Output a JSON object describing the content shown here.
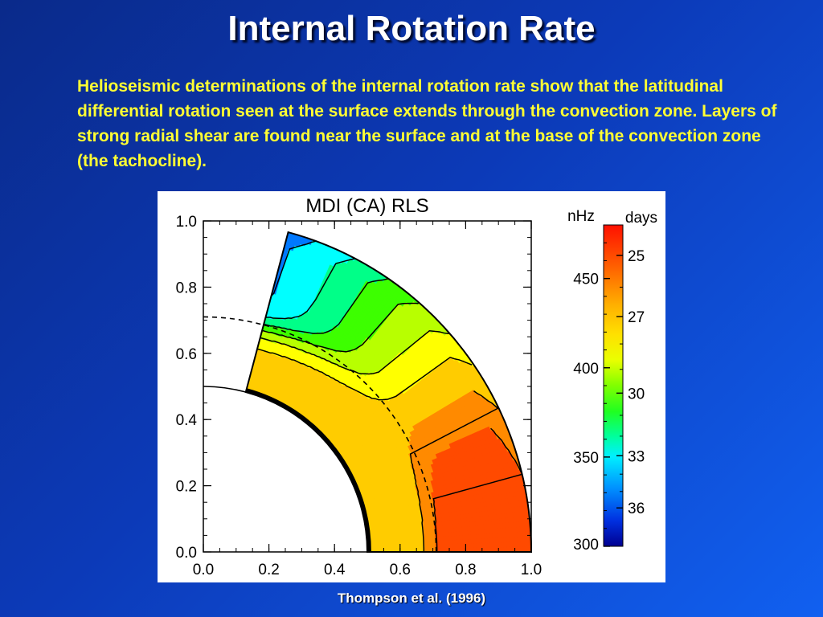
{
  "slide": {
    "title": "Internal Rotation Rate",
    "body": "Helioseismic determinations of the internal rotation rate show that the latitudinal differential rotation seen at the surface extends through the convection zone. Layers of strong radial shear are found near the surface and at the base of the convection zone (the tachocline).",
    "caption": "Thompson et al. (1996)"
  },
  "chart_data": {
    "type": "heatmap",
    "title": "MDI (CA) RLS",
    "x_ticks": [
      "0.0",
      "0.2",
      "0.4",
      "0.6",
      "0.8",
      "1.0"
    ],
    "y_ticks": [
      "0.0",
      "0.2",
      "0.4",
      "0.6",
      "0.8",
      "1.0"
    ],
    "xlim": [
      0,
      1
    ],
    "ylim": [
      0,
      1
    ],
    "tachocline_radius": 0.71,
    "inner_boundary_radius": 0.5,
    "colorbar": {
      "left_label": "nHz",
      "right_label": "days",
      "range_nHz": [
        300,
        480
      ],
      "nHz_ticks": [
        "450",
        "400",
        "350",
        "300"
      ],
      "nHz_values": [
        450,
        400,
        350,
        300
      ],
      "days_ticks": [
        "25",
        "27",
        "30",
        "33",
        "36"
      ],
      "days_values": [
        25,
        27,
        30,
        33,
        36
      ]
    },
    "colors": {
      "red": "#ff1a00",
      "orange_red": "#ff4a00",
      "orange": "#ff8a00",
      "yellow_orange": "#ffcc00",
      "yellow": "#ffff00",
      "yellow_green": "#b8ff00",
      "green": "#3dff00",
      "green_cyan": "#00ff88",
      "cyan": "#00ffff",
      "blue": "#0078ff",
      "dark_blue": "#0000aa"
    }
  }
}
